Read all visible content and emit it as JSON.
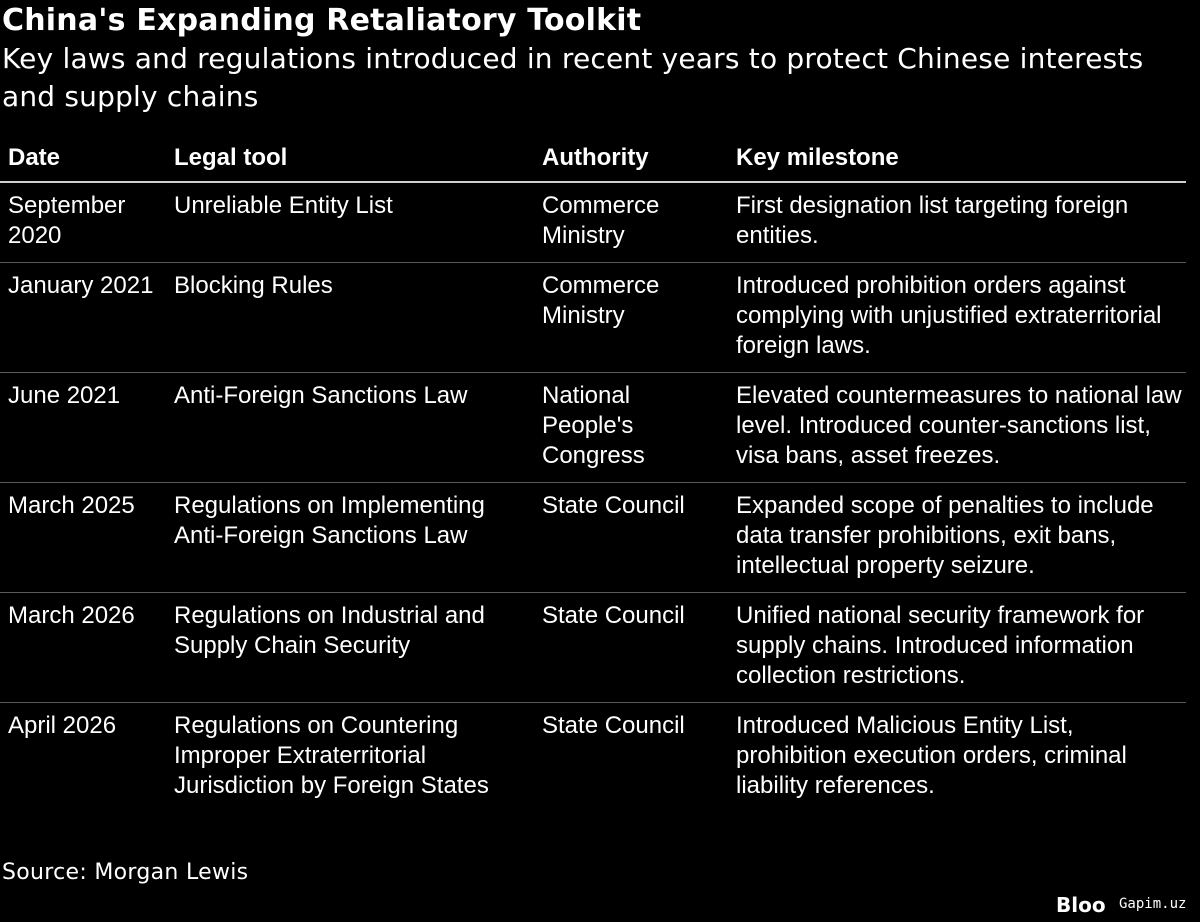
{
  "chart_data": {
    "type": "table",
    "title": "China's Expanding Retaliatory Toolkit",
    "subtitle": "Key laws and regulations introduced in recent years to protect Chinese interests and supply chains",
    "columns": [
      "Date",
      "Legal tool",
      "Authority",
      "Key milestone"
    ],
    "rows": [
      {
        "date": "September 2020",
        "tool": "Unreliable Entity List",
        "authority": "Commerce Ministry",
        "milestone": "First designation list targeting foreign entities."
      },
      {
        "date": "January 2021",
        "tool": "Blocking Rules",
        "authority": "Commerce Ministry",
        "milestone": "Introduced prohibition orders against complying with unjustified extraterritorial foreign laws."
      },
      {
        "date": "June 2021",
        "tool": "Anti-Foreign Sanctions Law",
        "authority": "National People's Congress",
        "milestone": "Elevated countermeasures to national law level. Introduced counter-sanctions list, visa bans, asset freezes."
      },
      {
        "date": "March 2025",
        "tool": "Regulations on Implementing Anti-Foreign Sanctions Law",
        "authority": "State Council",
        "milestone": "Expanded scope of penalties to include data transfer prohibitions, exit bans, intellectual property seizure."
      },
      {
        "date": "March 2026",
        "tool": "Regulations on Industrial and Supply Chain Security",
        "authority": "State Council",
        "milestone": "Unified national security framework for supply chains. Introduced information collection restrictions."
      },
      {
        "date": "April 2026",
        "tool": "Regulations on Countering Improper Extraterritorial Jurisdiction by Foreign States",
        "authority": "State Council",
        "milestone": "Introduced Malicious Entity List, prohibition execution orders, criminal liability references."
      }
    ],
    "source": "Source: Morgan Lewis"
  },
  "branding": {
    "logo_text": "Bloo",
    "watermark": "Gapim.uz"
  },
  "colors": {
    "background": "#000000",
    "text": "#ffffff",
    "header_rule": "#cfcfcf",
    "row_rule": "#5a5a5a"
  }
}
